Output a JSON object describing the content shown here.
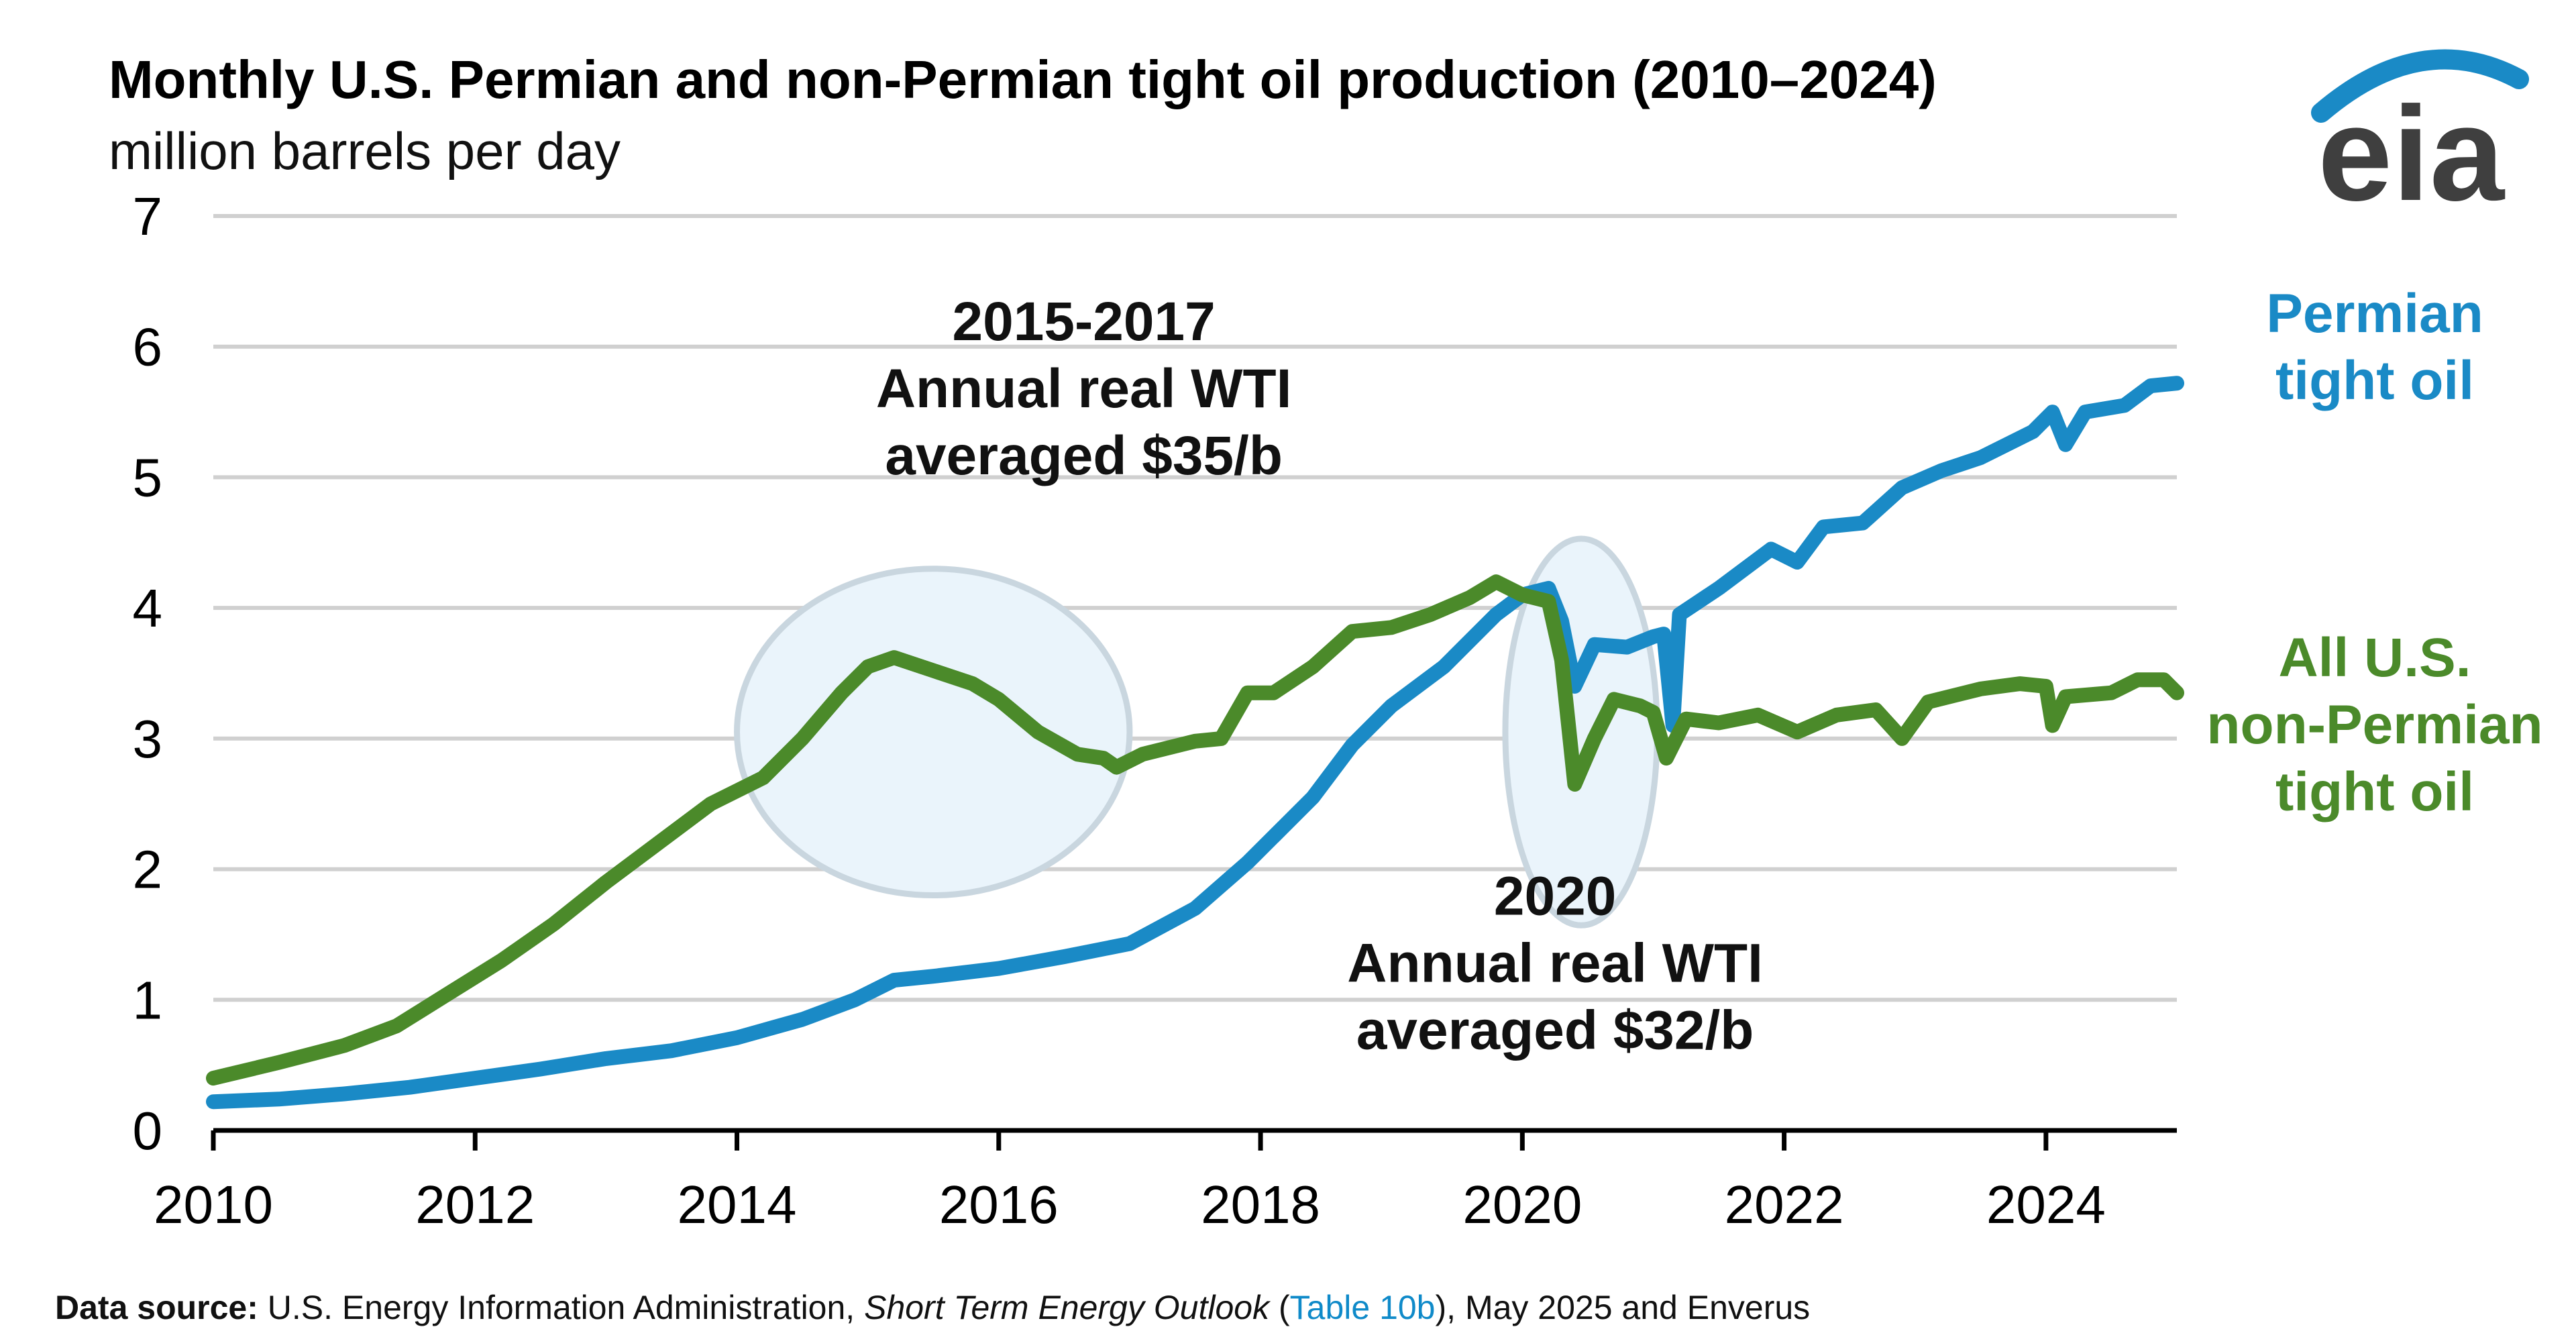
{
  "chart_data": {
    "type": "line",
    "title": "Monthly U.S. Permian and non-Permian tight oil production (2010–2024)",
    "subtitle": "million barrels per day",
    "xlim": [
      2010,
      2025
    ],
    "ylim": [
      0,
      7
    ],
    "x_ticks": [
      "2010",
      "2012",
      "2014",
      "2016",
      "2018",
      "2020",
      "2022",
      "2024"
    ],
    "y_ticks": [
      "0",
      "1",
      "2",
      "3",
      "4",
      "5",
      "6",
      "7"
    ],
    "grid": true,
    "series": [
      {
        "name": "Permian tight oil",
        "label_lines": [
          "Permian",
          "tight oil"
        ],
        "color": "#1a8ac6",
        "points": [
          [
            2010.0,
            0.22
          ],
          [
            2010.5,
            0.24
          ],
          [
            2011.0,
            0.28
          ],
          [
            2011.5,
            0.33
          ],
          [
            2012.0,
            0.4
          ],
          [
            2012.5,
            0.47
          ],
          [
            2013.0,
            0.55
          ],
          [
            2013.5,
            0.61
          ],
          [
            2014.0,
            0.71
          ],
          [
            2014.5,
            0.85
          ],
          [
            2014.9,
            1.0
          ],
          [
            2015.2,
            1.15
          ],
          [
            2015.5,
            1.18
          ],
          [
            2016.0,
            1.24
          ],
          [
            2016.5,
            1.33
          ],
          [
            2017.0,
            1.43
          ],
          [
            2017.5,
            1.7
          ],
          [
            2017.9,
            2.05
          ],
          [
            2018.1,
            2.25
          ],
          [
            2018.4,
            2.55
          ],
          [
            2018.7,
            2.95
          ],
          [
            2019.0,
            3.25
          ],
          [
            2019.4,
            3.55
          ],
          [
            2019.8,
            3.95
          ],
          [
            2020.0,
            4.1
          ],
          [
            2020.2,
            4.15
          ],
          [
            2020.3,
            3.9
          ],
          [
            2020.4,
            3.4
          ],
          [
            2020.55,
            3.72
          ],
          [
            2020.8,
            3.7
          ],
          [
            2021.0,
            3.78
          ],
          [
            2021.08,
            3.8
          ],
          [
            2021.15,
            3.1
          ],
          [
            2021.2,
            3.95
          ],
          [
            2021.5,
            4.15
          ],
          [
            2021.9,
            4.45
          ],
          [
            2022.1,
            4.35
          ],
          [
            2022.3,
            4.62
          ],
          [
            2022.6,
            4.65
          ],
          [
            2022.9,
            4.92
          ],
          [
            2023.2,
            5.05
          ],
          [
            2023.5,
            5.15
          ],
          [
            2023.9,
            5.35
          ],
          [
            2024.05,
            5.5
          ],
          [
            2024.15,
            5.25
          ],
          [
            2024.3,
            5.5
          ],
          [
            2024.6,
            5.55
          ],
          [
            2024.8,
            5.7
          ],
          [
            2025.0,
            5.72
          ]
        ]
      },
      {
        "name": "All U.S. non-Permian tight oil",
        "label_lines": [
          "All U.S.",
          "non-Permian",
          "tight oil"
        ],
        "color": "#4b8a2a",
        "points": [
          [
            2010.0,
            0.4
          ],
          [
            2010.5,
            0.52
          ],
          [
            2011.0,
            0.65
          ],
          [
            2011.4,
            0.8
          ],
          [
            2011.8,
            1.05
          ],
          [
            2012.2,
            1.3
          ],
          [
            2012.6,
            1.58
          ],
          [
            2013.0,
            1.9
          ],
          [
            2013.4,
            2.2
          ],
          [
            2013.8,
            2.5
          ],
          [
            2014.2,
            2.7
          ],
          [
            2014.5,
            3.0
          ],
          [
            2014.8,
            3.35
          ],
          [
            2015.0,
            3.55
          ],
          [
            2015.2,
            3.62
          ],
          [
            2015.5,
            3.52
          ],
          [
            2015.8,
            3.42
          ],
          [
            2016.0,
            3.3
          ],
          [
            2016.3,
            3.05
          ],
          [
            2016.6,
            2.88
          ],
          [
            2016.8,
            2.85
          ],
          [
            2016.9,
            2.78
          ],
          [
            2017.1,
            2.88
          ],
          [
            2017.5,
            2.98
          ],
          [
            2017.7,
            3.0
          ],
          [
            2017.9,
            3.35
          ],
          [
            2018.1,
            3.35
          ],
          [
            2018.4,
            3.55
          ],
          [
            2018.7,
            3.82
          ],
          [
            2019.0,
            3.85
          ],
          [
            2019.3,
            3.95
          ],
          [
            2019.6,
            4.08
          ],
          [
            2019.8,
            4.2
          ],
          [
            2020.0,
            4.1
          ],
          [
            2020.2,
            4.05
          ],
          [
            2020.3,
            3.6
          ],
          [
            2020.4,
            2.65
          ],
          [
            2020.55,
            3.0
          ],
          [
            2020.7,
            3.3
          ],
          [
            2020.9,
            3.25
          ],
          [
            2021.0,
            3.2
          ],
          [
            2021.1,
            2.85
          ],
          [
            2021.25,
            3.15
          ],
          [
            2021.5,
            3.12
          ],
          [
            2021.8,
            3.18
          ],
          [
            2022.1,
            3.05
          ],
          [
            2022.4,
            3.18
          ],
          [
            2022.7,
            3.22
          ],
          [
            2022.9,
            3.0
          ],
          [
            2023.1,
            3.28
          ],
          [
            2023.5,
            3.38
          ],
          [
            2023.8,
            3.42
          ],
          [
            2024.0,
            3.4
          ],
          [
            2024.05,
            3.1
          ],
          [
            2024.15,
            3.32
          ],
          [
            2024.5,
            3.35
          ],
          [
            2024.7,
            3.45
          ],
          [
            2024.9,
            3.45
          ],
          [
            2025.0,
            3.35
          ]
        ]
      }
    ],
    "annotations": [
      {
        "name": "annotation-2015-2017",
        "lines": [
          "2015-2017",
          "Annual real WTI",
          "averaged $35/b"
        ],
        "ellipse": {
          "cx": 2015.5,
          "cy": 3.05,
          "rx": 1.5,
          "ry": 1.25
        },
        "text_x": 2016.65,
        "text_y_top": 6.05
      },
      {
        "name": "annotation-2020",
        "lines": [
          "2020",
          "Annual real WTI",
          "averaged $32/b"
        ],
        "ellipse": {
          "cx": 2020.45,
          "cy": 3.05,
          "rx": 0.58,
          "ry": 1.48
        },
        "text_x": 2020.25,
        "text_y_top": 1.65
      }
    ]
  },
  "logo": {
    "text": "eia",
    "color": "#3f3f3f",
    "arc_color": "#1a8ac6"
  },
  "source": {
    "label": "Data source:",
    "pre": "U.S. Energy Information Administration,",
    "italic": "Short Term Energy Outlook",
    "paren_open": "(",
    "link": "Table 10b",
    "paren_close": "),",
    "post": "May 2025 and Enverus"
  }
}
